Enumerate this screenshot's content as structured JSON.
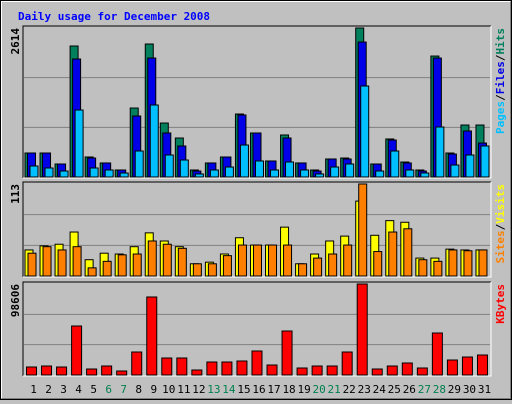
{
  "chart_data": [
    {
      "type": "bar",
      "title": "Daily usage for December 2008",
      "separator": "/",
      "ylim": [
        0,
        2614
      ],
      "yticks": [
        {
          "value": 871.33,
          "label": null
        },
        {
          "value": 1742.67,
          "label": null
        },
        2614
      ],
      "grid": true,
      "series": [
        {
          "name": "Hits",
          "color": "#00805c",
          "values": [
            421,
            421,
            228,
            2298,
            351,
            246,
            123,
            1210,
            2333,
            947,
            684,
            123,
            246,
            351,
            1105,
            772,
            281,
            737,
            246,
            123,
            316,
            333,
            2614,
            228,
            667,
            263,
            123,
            2122,
            421,
            912,
            912
          ]
        },
        {
          "name": "Files",
          "color": "#0000e8",
          "values": [
            421,
            421,
            228,
            2070,
            333,
            246,
            123,
            1070,
            2087,
            772,
            544,
            105,
            246,
            351,
            1088,
            772,
            281,
            684,
            246,
            105,
            316,
            316,
            2368,
            228,
            649,
            246,
            105,
            2087,
            403,
            807,
            596
          ]
        },
        {
          "name": "Pages",
          "color": "#00c0ff",
          "values": [
            193,
            158,
            105,
            1175,
            158,
            123,
            70,
            456,
            1263,
            386,
            298,
            53,
            123,
            175,
            561,
            281,
            123,
            263,
            123,
            53,
            175,
            228,
            1596,
            105,
            456,
            123,
            70,
            877,
            210,
            386,
            544
          ]
        }
      ]
    },
    {
      "type": "bar",
      "separator": "/",
      "ylim": [
        0,
        113
      ],
      "yticks": [
        {
          "value": 37.67,
          "label": null
        },
        {
          "value": 75.33,
          "label": null
        },
        113
      ],
      "grid": true,
      "series": [
        {
          "name": "Visits",
          "color": "#ffff00",
          "values": [
            32,
            37,
            39,
            54,
            20,
            28,
            27,
            36,
            53,
            43,
            36,
            15,
            17,
            27,
            47,
            38,
            38,
            60,
            15,
            27,
            43,
            49,
            92,
            50,
            68,
            66,
            22,
            22,
            33,
            32,
            32
          ]
        },
        {
          "name": "Sites",
          "color": "#ff8000",
          "values": [
            28,
            36,
            32,
            36,
            10,
            18,
            26,
            27,
            43,
            39,
            34,
            15,
            15,
            25,
            38,
            38,
            38,
            38,
            15,
            22,
            27,
            38,
            113,
            30,
            54,
            58,
            20,
            18,
            32,
            31,
            32
          ]
        }
      ]
    },
    {
      "type": "bar",
      "ylim": [
        0,
        98606
      ],
      "yticks": [
        {
          "value": 32868.67,
          "label": null
        },
        {
          "value": 65737.33,
          "label": null
        },
        98606
      ],
      "grid": true,
      "categories": [
        "1",
        "2",
        "3",
        "4",
        "5",
        "6",
        "7",
        "8",
        "9",
        "10",
        "11",
        "12",
        "13",
        "14",
        "15",
        "16",
        "17",
        "18",
        "19",
        "20",
        "21",
        "22",
        "23",
        "24",
        "25",
        "26",
        "27",
        "28",
        "29",
        "30",
        "31"
      ],
      "label_colors": [
        "#000000",
        "#000000",
        "#000000",
        "#000000",
        "#000000",
        "#008050",
        "#008050",
        "#000000",
        "#000000",
        "#000000",
        "#000000",
        "#000000",
        "#008050",
        "#008050",
        "#000000",
        "#000000",
        "#000000",
        "#000000",
        "#000000",
        "#008050",
        "#008050",
        "#000000",
        "#000000",
        "#000000",
        "#000000",
        "#000000",
        "#008050",
        "#008050",
        "#000000",
        "#000000",
        "#000000"
      ],
      "series": [
        {
          "name": "KBytes",
          "color": "#ff0000",
          "values": [
            8669,
            9753,
            8669,
            53098,
            6502,
            9753,
            4334,
            24924,
            84528,
            18421,
            18421,
            5418,
            14087,
            14087,
            15170,
            26006,
            10836,
            47678,
            7585,
            9753,
            9753,
            24924,
            98606,
            6502,
            9753,
            13004,
            7585,
            45510,
            16254,
            19505,
            21671
          ]
        }
      ]
    }
  ]
}
